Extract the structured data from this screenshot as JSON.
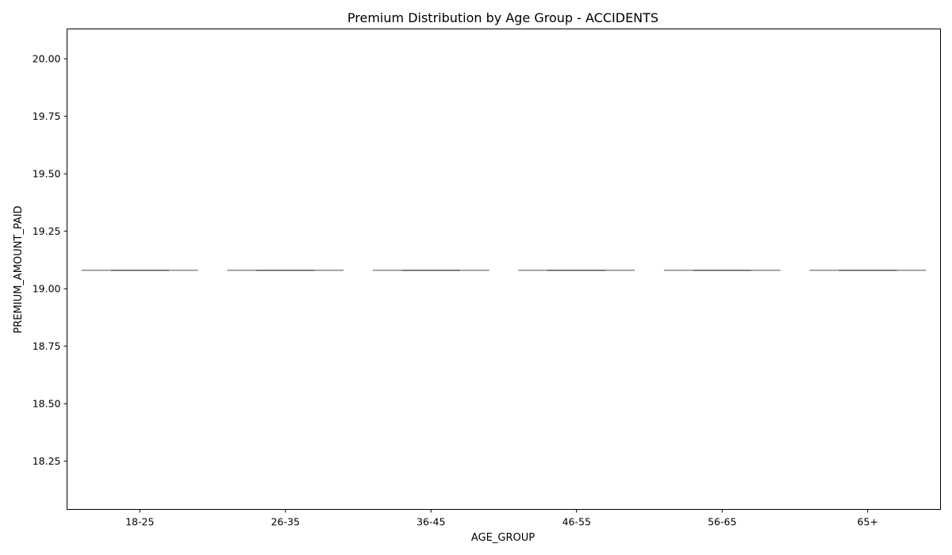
{
  "chart_data": {
    "type": "box",
    "title": "Premium Distribution by Age Group - ACCIDENTS",
    "xlabel": "AGE_GROUP",
    "ylabel": "PREMIUM_AMOUNT_PAID",
    "categories": [
      "18-25",
      "26-35",
      "36-45",
      "46-55",
      "56-65",
      "65+"
    ],
    "values": [
      19.08,
      19.08,
      19.08,
      19.08,
      19.08,
      19.08
    ],
    "ylim": [
      18.04,
      20.13
    ],
    "yticks": [
      "18.25",
      "18.50",
      "18.75",
      "19.00",
      "19.25",
      "19.50",
      "19.75",
      "20.00"
    ],
    "grid": false,
    "box_color": "#7f7f7f"
  }
}
